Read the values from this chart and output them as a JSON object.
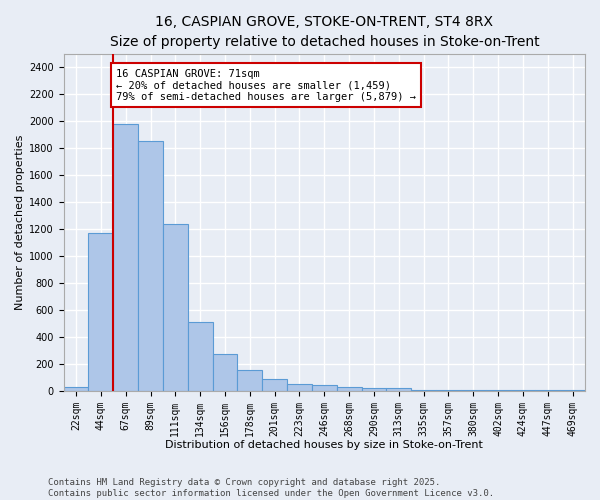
{
  "title": "16, CASPIAN GROVE, STOKE-ON-TRENT, ST4 8RX",
  "subtitle": "Size of property relative to detached houses in Stoke-on-Trent",
  "xlabel": "Distribution of detached houses by size in Stoke-on-Trent",
  "ylabel": "Number of detached properties",
  "categories": [
    "22sqm",
    "44sqm",
    "67sqm",
    "89sqm",
    "111sqm",
    "134sqm",
    "156sqm",
    "178sqm",
    "201sqm",
    "223sqm",
    "246sqm",
    "268sqm",
    "290sqm",
    "313sqm",
    "335sqm",
    "357sqm",
    "380sqm",
    "402sqm",
    "424sqm",
    "447sqm",
    "469sqm"
  ],
  "values": [
    25,
    1170,
    1980,
    1850,
    1240,
    510,
    275,
    155,
    90,
    50,
    45,
    30,
    20,
    20,
    10,
    5,
    5,
    5,
    5,
    5,
    5
  ],
  "bar_color": "#aec6e8",
  "bar_edge_color": "#5b9bd5",
  "background_color": "#e8edf5",
  "grid_color": "#ffffff",
  "red_line_x": 1.5,
  "annotation_text": "16 CASPIAN GROVE: 71sqm\n← 20% of detached houses are smaller (1,459)\n79% of semi-detached houses are larger (5,879) →",
  "annotation_box_color": "#ffffff",
  "annotation_border_color": "#cc0000",
  "ylim": [
    0,
    2500
  ],
  "yticks": [
    0,
    200,
    400,
    600,
    800,
    1000,
    1200,
    1400,
    1600,
    1800,
    2000,
    2200,
    2400
  ],
  "footer_line1": "Contains HM Land Registry data © Crown copyright and database right 2025.",
  "footer_line2": "Contains public sector information licensed under the Open Government Licence v3.0.",
  "title_fontsize": 10,
  "xlabel_fontsize": 8,
  "ylabel_fontsize": 8,
  "tick_fontsize": 7,
  "annotation_fontsize": 7.5,
  "footer_fontsize": 6.5
}
